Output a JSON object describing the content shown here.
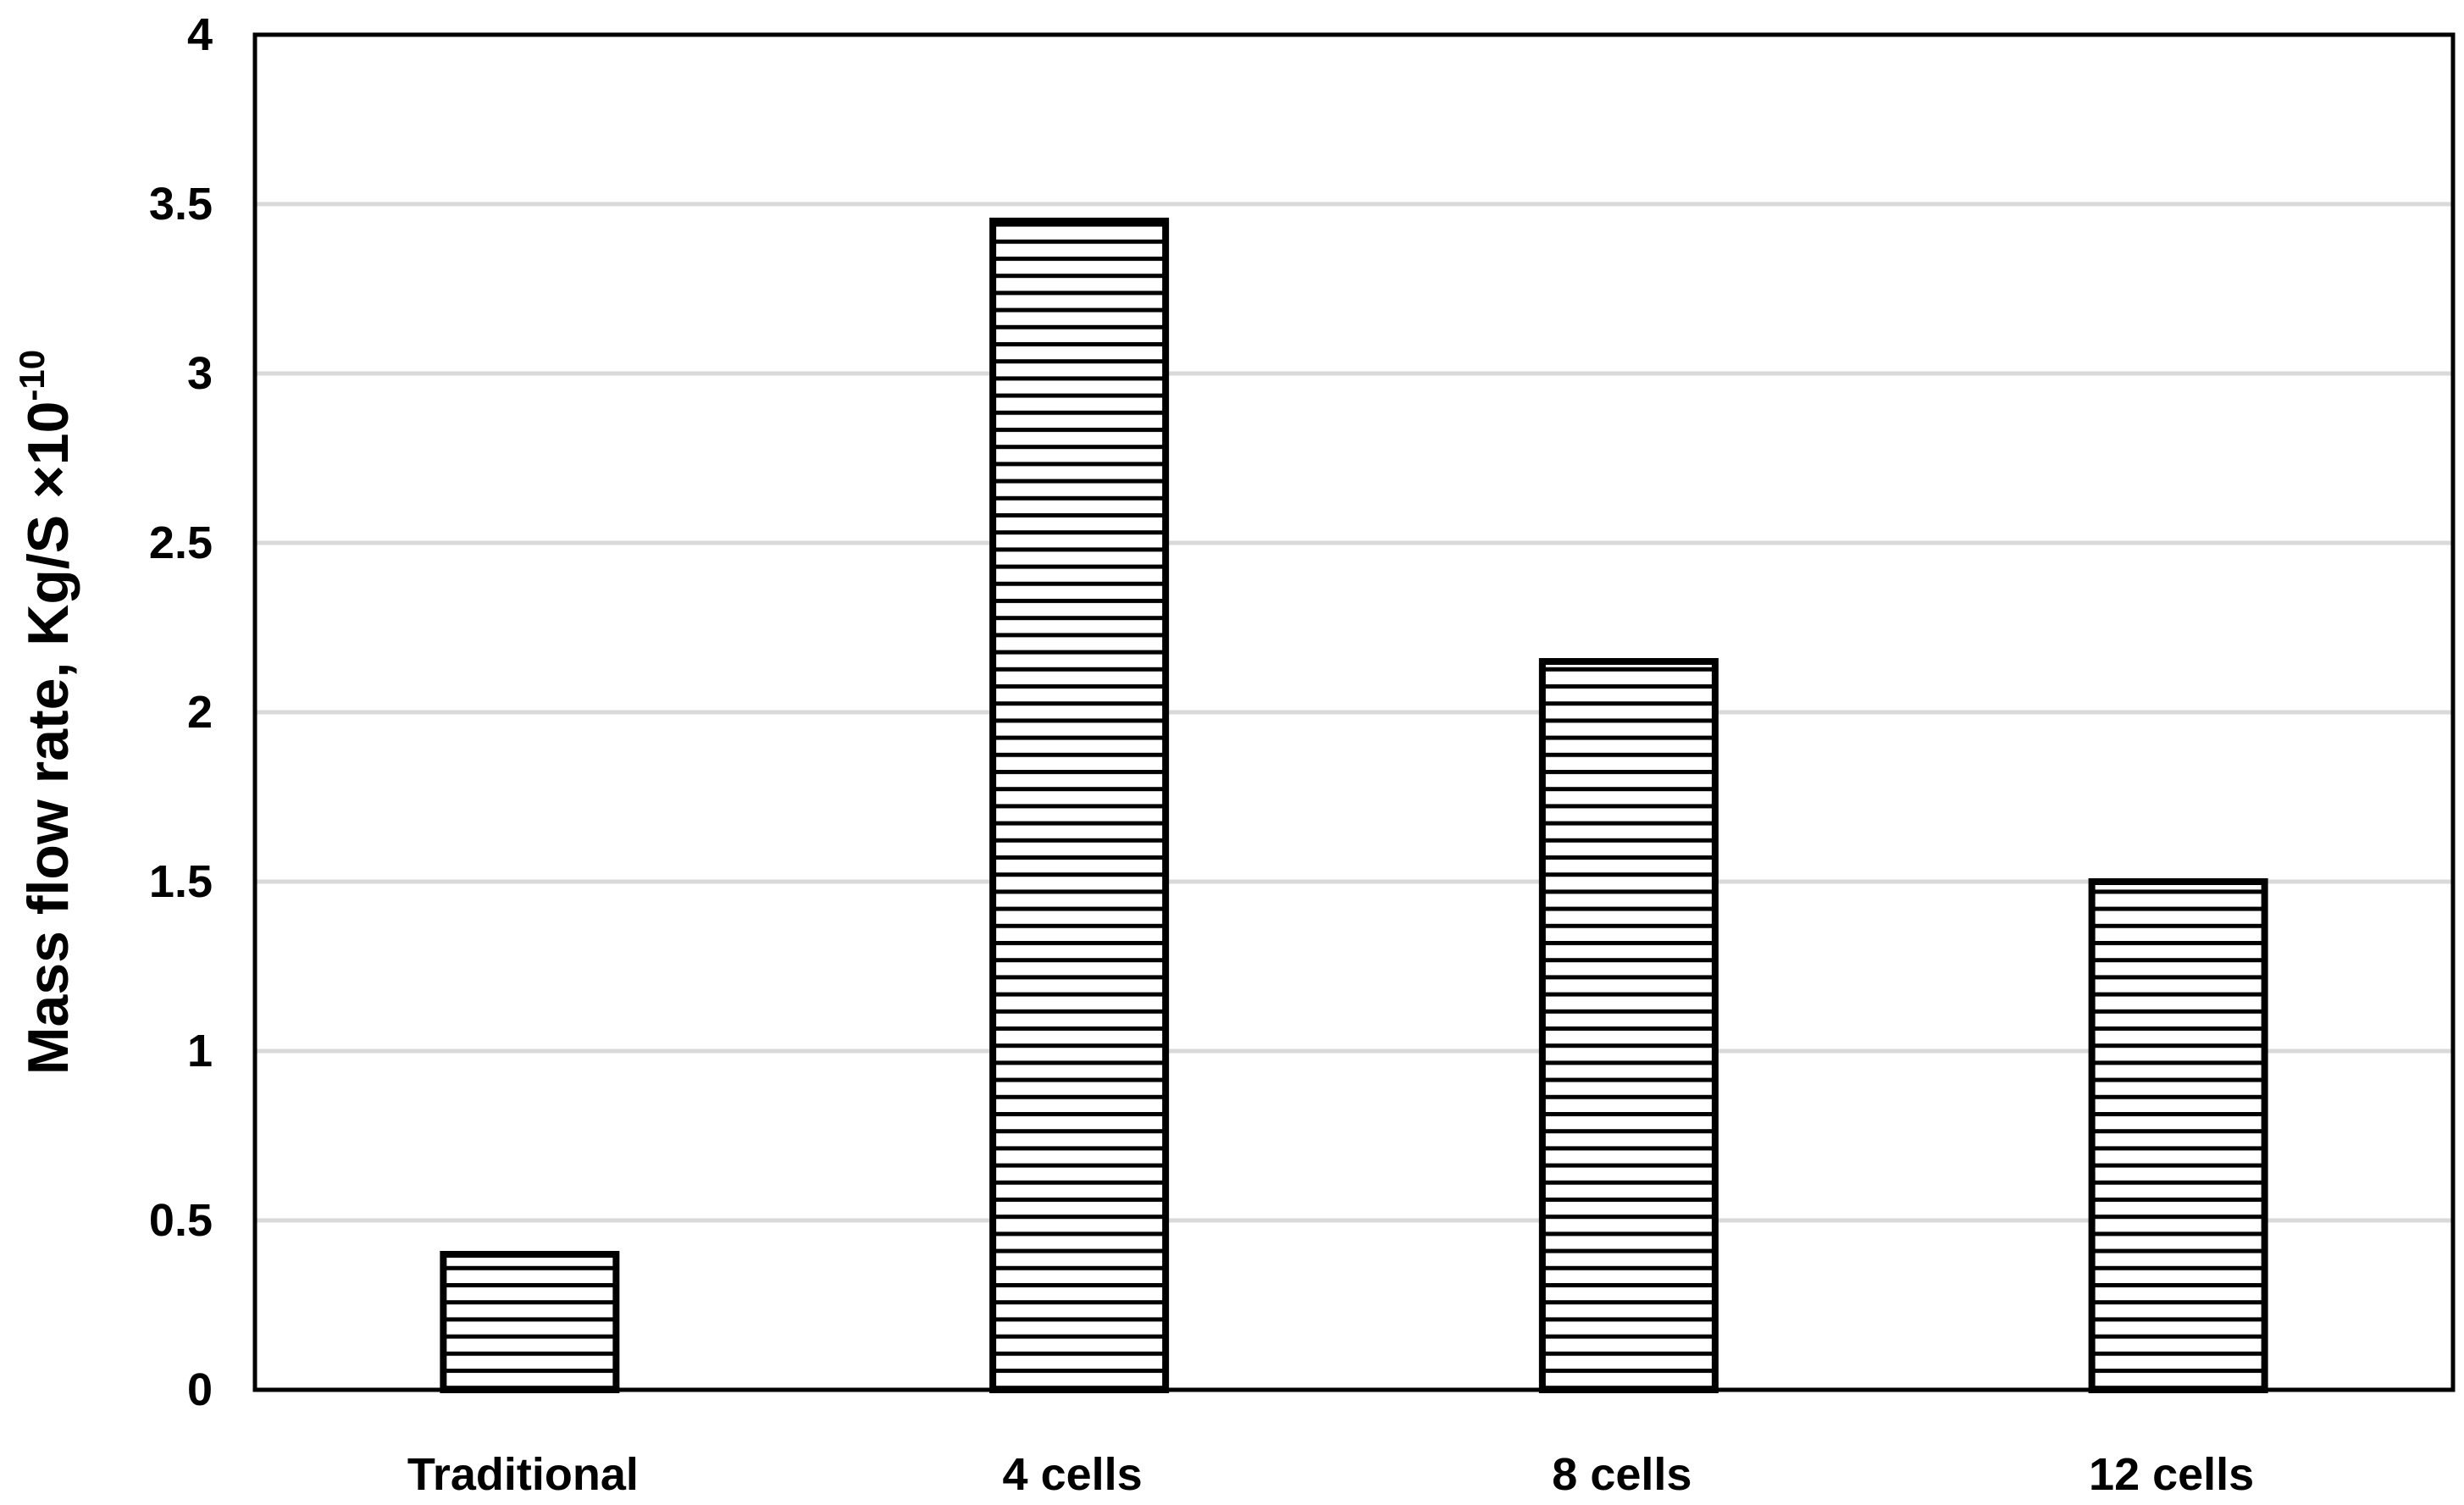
{
  "chart_data": {
    "type": "bar",
    "title": "",
    "xlabel": "",
    "ylabel": "Mass flow rate, Kg/S ×10",
    "ylabel_superscript": "-10",
    "categories": [
      "Traditional",
      "4 cells",
      "8 cells",
      "12 cells"
    ],
    "values": [
      0.4,
      3.45,
      2.15,
      1.5
    ],
    "ylim": [
      0,
      4
    ],
    "yticks": [
      "0",
      "0.5",
      "1",
      "1.5",
      "2",
      "2.5",
      "3",
      "3.5",
      "4"
    ],
    "grid": true,
    "legend": "none",
    "bar_fill": "horizontal-line hatch",
    "colors": {
      "bar_stroke": "#000000",
      "grid": "#d9d9d9",
      "axis": "#000000"
    }
  }
}
